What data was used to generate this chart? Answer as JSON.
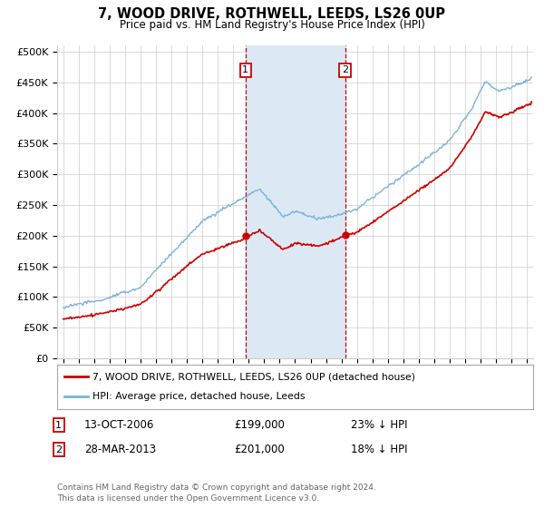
{
  "title": "7, WOOD DRIVE, ROTHWELL, LEEDS, LS26 0UP",
  "subtitle": "Price paid vs. HM Land Registry's House Price Index (HPI)",
  "hpi_color": "#7ab4d8",
  "price_color": "#cc0000",
  "shading_color": "#dce9f5",
  "vline_color": "#cc0000",
  "grid_color": "#cccccc",
  "bg_color": "#ffffff",
  "yticks": [
    0,
    50000,
    100000,
    150000,
    200000,
    250000,
    300000,
    350000,
    400000,
    450000,
    500000
  ],
  "ytick_labels": [
    "£0",
    "£50K",
    "£100K",
    "£150K",
    "£200K",
    "£250K",
    "£300K",
    "£350K",
    "£400K",
    "£450K",
    "£500K"
  ],
  "purchase1_year": 2006.79,
  "purchase1_price": 199000,
  "purchase2_year": 2013.24,
  "purchase2_price": 201000,
  "legend_label1": "7, WOOD DRIVE, ROTHWELL, LEEDS, LS26 0UP (detached house)",
  "legend_label2": "HPI: Average price, detached house, Leeds",
  "purchase1_date": "13-OCT-2006",
  "purchase1_paid": "£199,000",
  "purchase1_pct": "23% ↓ HPI",
  "purchase2_date": "28-MAR-2013",
  "purchase2_paid": "£201,000",
  "purchase2_pct": "18% ↓ HPI",
  "footnote1": "Contains HM Land Registry data © Crown copyright and database right 2024.",
  "footnote2": "This data is licensed under the Open Government Licence v3.0."
}
